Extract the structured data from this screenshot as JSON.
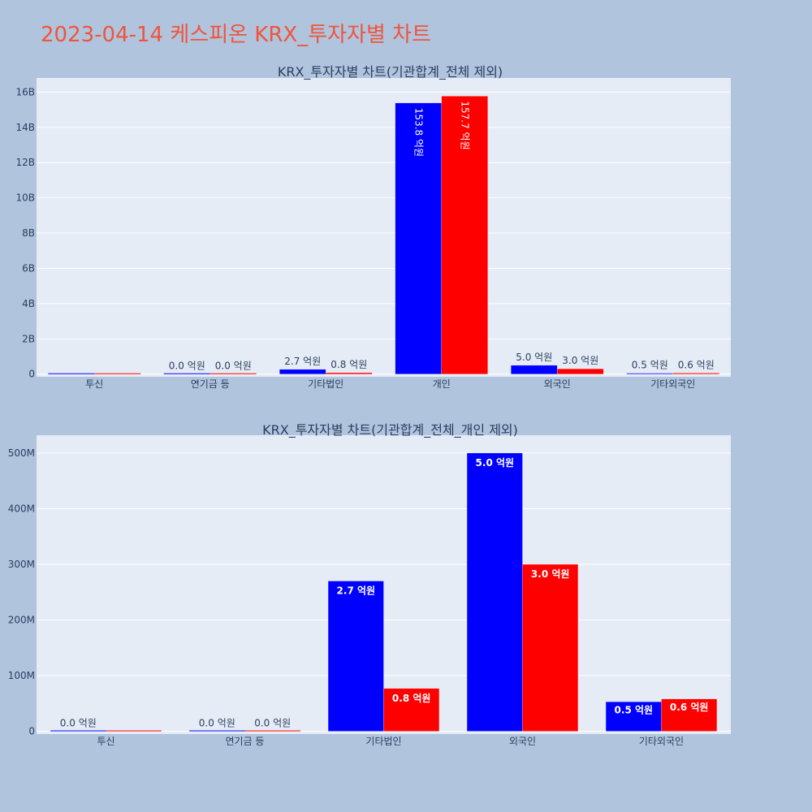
{
  "title": "2023-04-14 케스피온 KRX_투자자별 차트",
  "colors": {
    "series_a": "#0000ff",
    "series_b": "#ff0000",
    "plot_bg": "#e5ecf6",
    "grid": "#ffffff",
    "text": "#2a3f5f",
    "title": "#ef553b",
    "page_bg": "#b0c4de"
  },
  "chart_data": [
    {
      "type": "bar",
      "title": "KRX_투자자별 차트(기관합계_전체 제외)",
      "categories": [
        "투신",
        "연기금 등",
        "기타법인",
        "개인",
        "외국인",
        "기타외국인"
      ],
      "series": [
        {
          "values": [
            0,
            0,
            270000000,
            15380000000,
            500000000,
            50000000
          ],
          "labels": [
            "",
            "0.0 억원",
            "2.7 억원",
            "153.8 억원",
            "5.0 억원",
            "0.5 억원"
          ]
        },
        {
          "values": [
            0,
            0,
            80000000,
            15770000000,
            300000000,
            60000000
          ],
          "labels": [
            "",
            "0.0 억원",
            "0.8 억원",
            "157.7 억원",
            "3.0 억원",
            "0.6 억원"
          ]
        }
      ],
      "ylim": [
        -150000000,
        16800000000
      ],
      "yticks": [
        0,
        2000000000,
        4000000000,
        6000000000,
        8000000000,
        10000000000,
        12000000000,
        14000000000,
        16000000000
      ],
      "ytick_labels": [
        "0",
        "2B",
        "4B",
        "6B",
        "8B",
        "10B",
        "12B",
        "14B",
        "16B"
      ],
      "grid": true
    },
    {
      "type": "bar",
      "title": "KRX_투자자별 차트(기관합계_전체_개인 제외)",
      "categories": [
        "투신",
        "연기금 등",
        "기타법인",
        "외국인",
        "기타외국인"
      ],
      "series": [
        {
          "values": [
            0,
            0,
            270000000,
            500000000,
            53000000
          ],
          "labels": [
            "0.0 억원",
            "0.0 억원",
            "2.7 억원",
            "5.0 억원",
            "0.5 억원"
          ]
        },
        {
          "values": [
            0,
            0,
            77000000,
            300000000,
            58000000
          ],
          "labels": [
            "",
            "0.0 억원",
            "0.8 억원",
            "3.0 억원",
            "0.6 억원"
          ]
        }
      ],
      "ylim": [
        -5000000,
        532000000
      ],
      "yticks": [
        0,
        100000000,
        200000000,
        300000000,
        400000000,
        500000000
      ],
      "ytick_labels": [
        "0",
        "100M",
        "200M",
        "300M",
        "400M",
        "500M"
      ],
      "grid": true
    }
  ]
}
